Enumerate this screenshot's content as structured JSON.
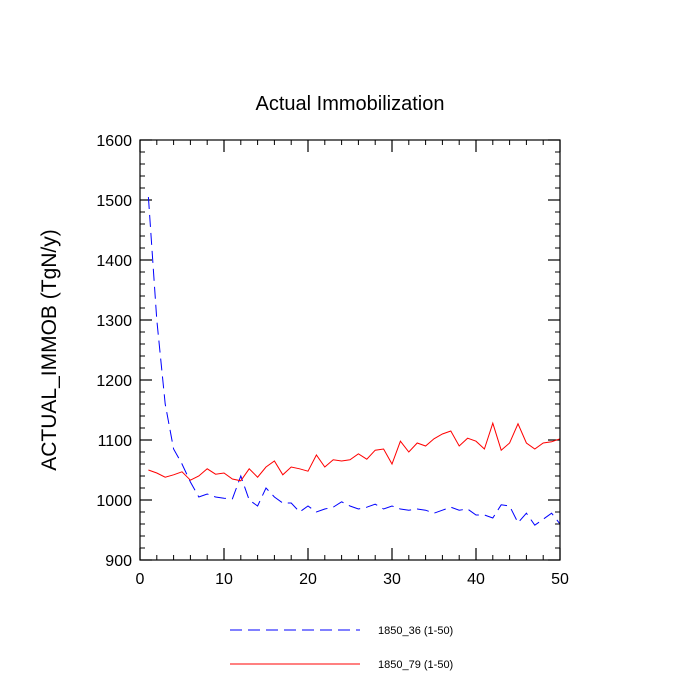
{
  "chart_data": {
    "type": "line",
    "title": "Actual Immobilization",
    "xlabel": "",
    "ylabel": "ACTUAL_IMMOB  (TgN/y)",
    "xlim": [
      0,
      50
    ],
    "ylim": [
      900,
      1600
    ],
    "x_ticks": [
      0,
      10,
      20,
      30,
      40,
      50
    ],
    "x_tick_labels": [
      "0",
      "10",
      "20",
      "30",
      "40",
      "50"
    ],
    "y_ticks": [
      900,
      1000,
      1100,
      1200,
      1300,
      1400,
      1500,
      1600
    ],
    "y_tick_labels": [
      "900",
      "1000",
      "1100",
      "1200",
      "1300",
      "1400",
      "1500",
      "1600"
    ],
    "legend_position": "bottom",
    "series": [
      {
        "name": "1850_36 (1-50)",
        "color": "#0000ff",
        "dash": "dashed",
        "x": [
          1,
          2,
          3,
          4,
          5,
          6,
          7,
          8,
          9,
          10,
          11,
          12,
          13,
          14,
          15,
          16,
          17,
          18,
          19,
          20,
          21,
          22,
          23,
          24,
          25,
          26,
          27,
          28,
          29,
          30,
          31,
          32,
          33,
          34,
          35,
          36,
          37,
          38,
          39,
          40,
          41,
          42,
          43,
          44,
          45,
          46,
          47,
          48,
          49,
          50
        ],
        "values": [
          1505,
          1300,
          1160,
          1085,
          1060,
          1030,
          1005,
          1010,
          1005,
          1003,
          1002,
          1040,
          1000,
          990,
          1020,
          1005,
          995,
          995,
          980,
          990,
          980,
          985,
          988,
          997,
          990,
          985,
          988,
          993,
          985,
          990,
          985,
          983,
          985,
          983,
          978,
          983,
          988,
          983,
          985,
          975,
          975,
          970,
          992,
          990,
          962,
          978,
          958,
          968,
          978,
          960
        ]
      },
      {
        "name": "1850_79 (1-50)",
        "color": "#ff0000",
        "dash": "solid",
        "x": [
          1,
          2,
          3,
          4,
          5,
          6,
          7,
          8,
          9,
          10,
          11,
          12,
          13,
          14,
          15,
          16,
          17,
          18,
          19,
          20,
          21,
          22,
          23,
          24,
          25,
          26,
          27,
          28,
          29,
          30,
          31,
          32,
          33,
          34,
          35,
          36,
          37,
          38,
          39,
          40,
          41,
          42,
          43,
          44,
          45,
          46,
          47,
          48,
          49,
          50
        ],
        "values": [
          1050,
          1045,
          1038,
          1042,
          1047,
          1033,
          1040,
          1052,
          1043,
          1045,
          1035,
          1032,
          1052,
          1038,
          1055,
          1065,
          1042,
          1055,
          1052,
          1048,
          1075,
          1055,
          1067,
          1065,
          1067,
          1077,
          1068,
          1083,
          1085,
          1060,
          1098,
          1080,
          1095,
          1090,
          1102,
          1110,
          1115,
          1090,
          1103,
          1098,
          1085,
          1128,
          1083,
          1095,
          1127,
          1095,
          1085,
          1095,
          1097,
          1102
        ]
      }
    ]
  }
}
